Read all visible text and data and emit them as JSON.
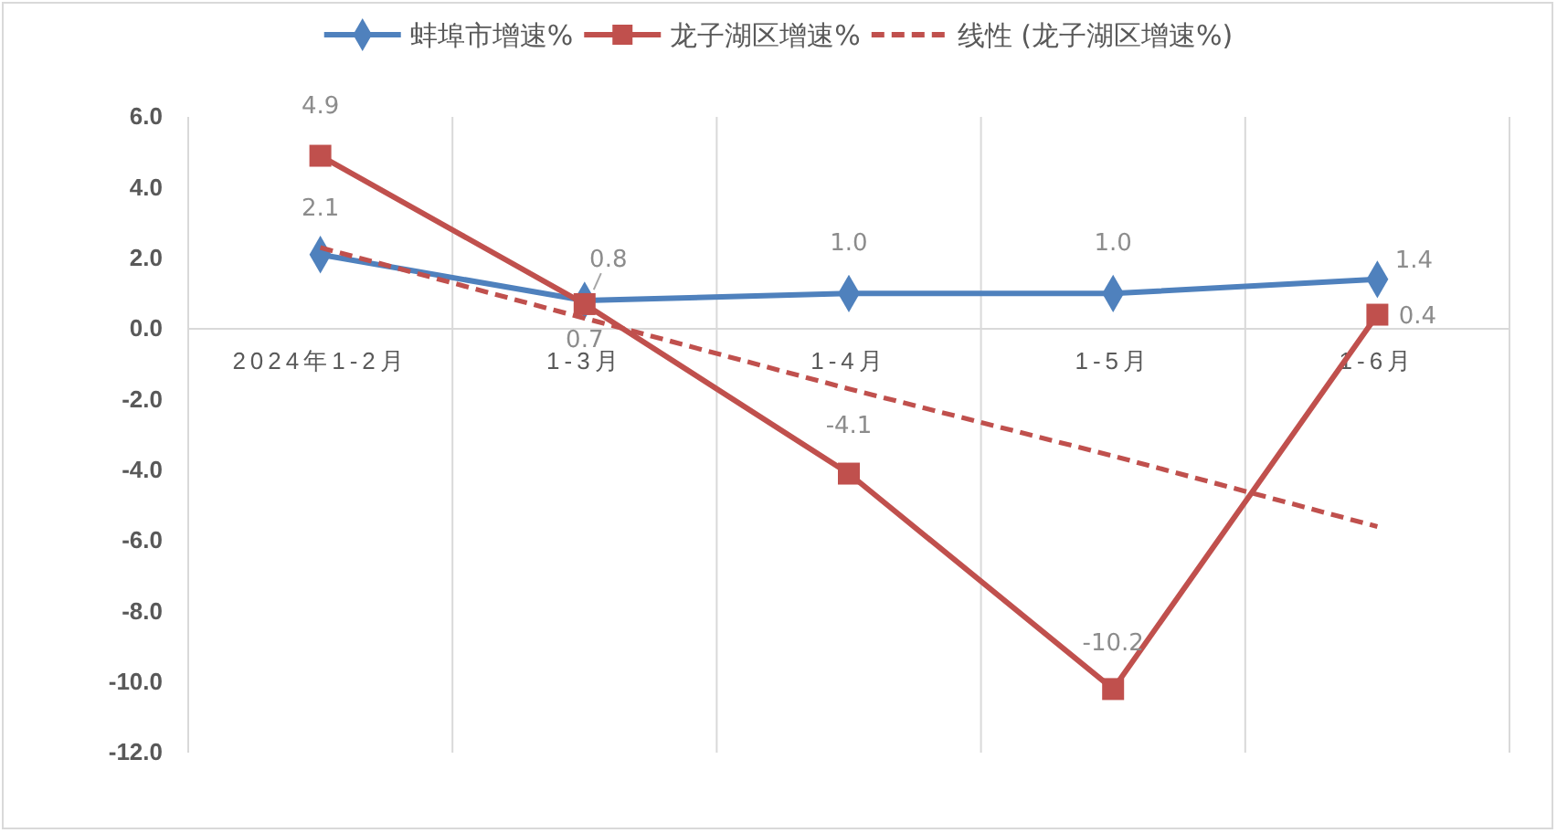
{
  "chart_data": {
    "type": "line",
    "categories": [
      "2024年1-2月",
      "1-3月",
      "1-4月",
      "1-5月",
      "1-6月"
    ],
    "series": [
      {
        "name": "蚌埠市增速%",
        "color": "#4f81bd",
        "marker": "diamond",
        "values": [
          2.1,
          0.8,
          1.0,
          1.0,
          1.4
        ],
        "value_labels": [
          "2.1",
          "0.8",
          "1.0",
          "1.0",
          "1.4"
        ]
      },
      {
        "name": "龙子湖区增速%",
        "color": "#c0504d",
        "marker": "square",
        "values": [
          4.9,
          0.7,
          -4.1,
          -10.2,
          0.4
        ],
        "value_labels": [
          "4.9",
          "0.7",
          "-4.1",
          "-10.2",
          "0.4"
        ]
      },
      {
        "name": "线性 (龙子湖区增速%)",
        "color": "#c0504d",
        "marker": "none",
        "line_style": "dashed",
        "values": [
          2.3,
          0.3,
          -1.7,
          -3.6,
          -5.6
        ]
      }
    ],
    "ylim": [
      -12,
      6
    ],
    "yticks": [
      {
        "value": -12,
        "label": "-12.0"
      },
      {
        "value": -10,
        "label": "-10.0"
      },
      {
        "value": -8,
        "label": "-8.0"
      },
      {
        "value": -6,
        "label": "-6.0"
      },
      {
        "value": -4,
        "label": "-4.0"
      },
      {
        "value": -2,
        "label": "-2.0"
      },
      {
        "value": 0,
        "label": "0.0"
      },
      {
        "value": 2,
        "label": "2.0"
      },
      {
        "value": 4,
        "label": "4.0"
      },
      {
        "value": 6,
        "label": "6.0"
      }
    ],
    "grid": "x",
    "legend": "top"
  }
}
